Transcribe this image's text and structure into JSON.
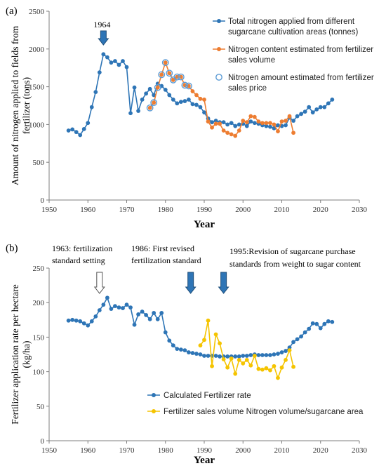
{
  "colors": {
    "blue": "#2e75b6",
    "orange": "#ed7d31",
    "yellow": "#f5c400",
    "axis": "#7f7f7f",
    "arrow_fill": "#2e75b6",
    "arrow_stroke": "#1f4e79"
  },
  "chart_data": [
    {
      "panel": "(a)",
      "type": "line",
      "ylabel_lines": [
        "Amount of nitrogen applied to fields from",
        "fertilizer (tons)"
      ],
      "xlabel": "Year",
      "xlim": [
        1950,
        2030
      ],
      "ylim": [
        0,
        2500
      ],
      "xticks": [
        1950,
        1960,
        1970,
        1980,
        1990,
        2000,
        2010,
        2020,
        2030
      ],
      "yticks": [
        0,
        500,
        1000,
        1500,
        2000,
        2500
      ],
      "grid": false,
      "legend_position": "top-right",
      "annotations": [
        {
          "text": "1964",
          "year": 1964,
          "arrow": "down-filled"
        }
      ],
      "series": [
        {
          "name_lines": [
            "Total nitrogen applied from different",
            "sugarcane cultivation areas (tonnes)"
          ],
          "color": "#2e75b6",
          "marker": "filled-circle",
          "x": [
            1955,
            1956,
            1957,
            1958,
            1959,
            1960,
            1961,
            1962,
            1963,
            1964,
            1965,
            1966,
            1967,
            1968,
            1969,
            1970,
            1971,
            1972,
            1973,
            1974,
            1975,
            1976,
            1977,
            1978,
            1979,
            1980,
            1981,
            1982,
            1983,
            1984,
            1985,
            1986,
            1987,
            1988,
            1989,
            1990,
            1991,
            1992,
            1993,
            1994,
            1995,
            1996,
            1997,
            1998,
            1999,
            2000,
            2001,
            2002,
            2003,
            2004,
            2005,
            2006,
            2007,
            2008,
            2009,
            2010,
            2011,
            2012,
            2013,
            2014,
            2015,
            2016,
            2017,
            2018,
            2019,
            2020,
            2021,
            2022,
            2023
          ],
          "y": [
            920,
            935,
            900,
            860,
            940,
            1020,
            1230,
            1430,
            1690,
            1930,
            1890,
            1820,
            1840,
            1790,
            1840,
            1760,
            1150,
            1490,
            1180,
            1330,
            1410,
            1470,
            1390,
            1540,
            1510,
            1460,
            1390,
            1330,
            1280,
            1300,
            1310,
            1330,
            1270,
            1260,
            1230,
            1160,
            1080,
            1030,
            1050,
            1030,
            1030,
            1000,
            1020,
            980,
            1000,
            1010,
            980,
            1040,
            1020,
            1010,
            990,
            980,
            970,
            950,
            990,
            980,
            990,
            1090,
            1050,
            1110,
            1140,
            1170,
            1230,
            1160,
            1200,
            1230,
            1230,
            1280,
            1330
          ]
        },
        {
          "name_lines": [
            "Nitrogen content estimated from fertilizer",
            "sales volume"
          ],
          "color": "#ed7d31",
          "marker": "filled-circle",
          "x": [
            1976,
            1977,
            1978,
            1979,
            1980,
            1981,
            1982,
            1983,
            1984,
            1985,
            1986,
            1987,
            1988,
            1989,
            1990,
            1991,
            1992,
            1993,
            1994,
            1995,
            1996,
            1997,
            1998,
            1999,
            2000,
            2001,
            2002,
            2003,
            2004,
            2005,
            2006,
            2007,
            2008,
            2009,
            2010,
            2011,
            2012,
            2013
          ],
          "y": [
            1220,
            1290,
            1490,
            1660,
            1820,
            1680,
            1590,
            1630,
            1630,
            1520,
            1510,
            1440,
            1390,
            1340,
            1330,
            1040,
            960,
            1010,
            1010,
            920,
            890,
            870,
            850,
            920,
            1050,
            1030,
            1110,
            1100,
            1040,
            1020,
            1020,
            1020,
            1000,
            910,
            1040,
            1050,
            1110,
            890
          ]
        },
        {
          "name_lines": [
            "Nitrogen amount estimated from fertilizer",
            "sales price"
          ],
          "color": "#5b9bd5",
          "marker": "open-circle",
          "x": [
            1976,
            1977,
            1978,
            1979,
            1980,
            1981,
            1982,
            1983,
            1984,
            1985,
            1986
          ],
          "y": [
            1220,
            1290,
            1490,
            1660,
            1820,
            1680,
            1590,
            1630,
            1630,
            1520,
            1510
          ]
        }
      ]
    },
    {
      "panel": "(b)",
      "type": "line",
      "ylabel_lines": [
        "Fertilizer application rate per hectare",
        "(kg/ha)"
      ],
      "xlabel": "Year",
      "xlim": [
        1950,
        2030
      ],
      "ylim": [
        0,
        250
      ],
      "xticks": [
        1950,
        1960,
        1970,
        1980,
        1990,
        2000,
        2010,
        2020,
        2030
      ],
      "yticks": [
        0,
        50,
        100,
        150,
        200,
        250
      ],
      "grid": false,
      "legend_position": "bottom-center",
      "annotations": [
        {
          "text_lines": [
            "1963:  fertilization",
            "standard setting"
          ],
          "year": 1963,
          "arrow": "down-open"
        },
        {
          "text_lines": [
            "1986: First revised",
            "fertilization standard"
          ],
          "year": 1986.5,
          "arrow": "down-filled"
        },
        {
          "text_lines": [
            "1995:Revision of sugarcane purchase",
            "standards from weight to sugar content"
          ],
          "year": 1995,
          "arrow": "down-filled"
        }
      ],
      "series": [
        {
          "name": "Calculated Fertilizer rate",
          "color": "#2e75b6",
          "marker": "filled-circle",
          "x": [
            1955,
            1956,
            1957,
            1958,
            1959,
            1960,
            1961,
            1962,
            1963,
            1964,
            1965,
            1966,
            1967,
            1968,
            1969,
            1970,
            1971,
            1972,
            1973,
            1974,
            1975,
            1976,
            1977,
            1978,
            1979,
            1980,
            1981,
            1982,
            1983,
            1984,
            1985,
            1986,
            1987,
            1988,
            1989,
            1990,
            1991,
            1992,
            1993,
            1994,
            1995,
            1996,
            1997,
            1998,
            1999,
            2000,
            2001,
            2002,
            2003,
            2004,
            2005,
            2006,
            2007,
            2008,
            2009,
            2010,
            2011,
            2012,
            2013,
            2014,
            2015,
            2016,
            2017,
            2018,
            2019,
            2020,
            2021,
            2022,
            2023
          ],
          "y": [
            174,
            175,
            174,
            173,
            170,
            167,
            173,
            180,
            189,
            197,
            207,
            191,
            195,
            193,
            192,
            197,
            193,
            168,
            183,
            187,
            182,
            176,
            185,
            176,
            185,
            157,
            145,
            138,
            133,
            132,
            131,
            128,
            127,
            126,
            125,
            123,
            123,
            123,
            123,
            122,
            122,
            122,
            122,
            122,
            122,
            123,
            123,
            124,
            125,
            124,
            124,
            124,
            124,
            125,
            126,
            128,
            130,
            135,
            143,
            147,
            151,
            157,
            162,
            170,
            169,
            163,
            169,
            173,
            172
          ]
        },
        {
          "name": "Fertilizer sales volume Nitrogen volume/sugarcane area",
          "color": "#f5c400",
          "marker": "filled-circle",
          "x": [
            1989,
            1990,
            1991,
            1992,
            1993,
            1994,
            1995,
            1996,
            1997,
            1998,
            1999,
            2000,
            2001,
            2002,
            2003,
            2004,
            2005,
            2006,
            2007,
            2008,
            2009,
            2010,
            2011,
            2012,
            2013
          ],
          "y": [
            138,
            146,
            174,
            108,
            154,
            141,
            118,
            106,
            119,
            97,
            117,
            112,
            117,
            109,
            123,
            104,
            103,
            105,
            102,
            108,
            91,
            106,
            117,
            131,
            107
          ]
        }
      ]
    }
  ]
}
